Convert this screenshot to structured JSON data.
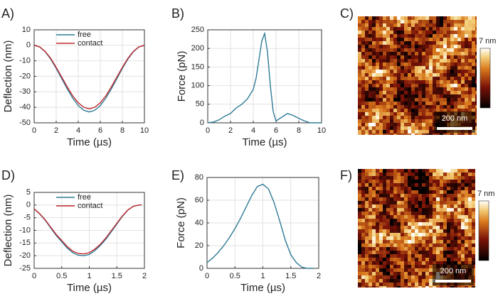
{
  "chart_data": [
    {
      "type": "line",
      "panel_label": "A)",
      "xlabel": "Time (µs)",
      "ylabel": "Deflection (nm)",
      "x": [
        0,
        0.5,
        1,
        1.5,
        2,
        2.5,
        3,
        3.5,
        4,
        4.5,
        5,
        5.5,
        6,
        6.5,
        7,
        7.5,
        8,
        8.5,
        9,
        9.5,
        10
      ],
      "series": [
        {
          "name": "free",
          "color": "#2e7a96",
          "values": [
            0,
            -1.1,
            -4.1,
            -8.9,
            -14.9,
            -21.5,
            -28.1,
            -34.1,
            -38.9,
            -41.9,
            -43,
            -41.9,
            -38.9,
            -34.1,
            -28.1,
            -21.5,
            -14.9,
            -8.9,
            -4.1,
            -1.1,
            0
          ]
        },
        {
          "name": "contact",
          "color": "#c0282e",
          "values": [
            0,
            -1.0,
            -3.9,
            -8.4,
            -14.2,
            -20.5,
            -26.8,
            -32.6,
            -37.1,
            -40.0,
            -41,
            -40.0,
            -37.1,
            -32.6,
            -26.8,
            -20.5,
            -14.2,
            -8.4,
            -3.9,
            -1.0,
            0
          ]
        }
      ],
      "xlim": [
        0,
        10
      ],
      "xticks": [
        0,
        2,
        4,
        6,
        8,
        10
      ],
      "ylim": [
        -50,
        10
      ],
      "yticks": [
        -50,
        -40,
        -30,
        -20,
        -10,
        0,
        10
      ],
      "grid": true,
      "legend": "upper center"
    },
    {
      "type": "line",
      "panel_label": "B)",
      "xlabel": "Time (µs)",
      "ylabel": "Force (pN)",
      "x": [
        0,
        0.5,
        1,
        1.5,
        2,
        2.5,
        3,
        3.5,
        4,
        4.25,
        4.5,
        4.75,
        5,
        5.25,
        5.5,
        5.75,
        6,
        6.5,
        7,
        7.5,
        8,
        8.5,
        9,
        9.5,
        10
      ],
      "series": [
        {
          "name": null,
          "color": "#2e7a96",
          "values": [
            0,
            2,
            8,
            18,
            25,
            40,
            50,
            65,
            90,
            120,
            170,
            220,
            240,
            190,
            100,
            30,
            5,
            15,
            25,
            20,
            12,
            5,
            0,
            0,
            0
          ]
        }
      ],
      "xlim": [
        0,
        10
      ],
      "xticks": [
        0,
        2,
        4,
        6,
        8,
        10
      ],
      "ylim": [
        0,
        250
      ],
      "yticks": [
        0,
        50,
        100,
        150,
        200,
        250
      ],
      "grid": true
    },
    {
      "type": "image",
      "panel_label": "C)",
      "colorbar_label": "7 nm",
      "scalebar_label": "200 nm"
    },
    {
      "type": "line",
      "panel_label": "D)",
      "xlabel": "Time (µs)",
      "ylabel": "Deflection (nm)",
      "x": [
        0,
        0.1,
        0.2,
        0.3,
        0.4,
        0.5,
        0.6,
        0.7,
        0.8,
        0.9,
        1.0,
        1.1,
        1.2,
        1.3,
        1.4,
        1.5,
        1.6,
        1.7,
        1.8,
        1.9,
        1.95
      ],
      "series": [
        {
          "name": "free",
          "color": "#2e7a96",
          "values": [
            -1.5,
            -3.5,
            -6,
            -9,
            -12,
            -14.5,
            -17,
            -18.8,
            -19.8,
            -20,
            -19.5,
            -18,
            -16,
            -13.5,
            -10.5,
            -7.5,
            -4.5,
            -2,
            -0.5,
            0,
            0
          ]
        },
        {
          "name": "contact",
          "color": "#c0282e",
          "values": [
            -1.5,
            -3.4,
            -5.8,
            -8.7,
            -11.6,
            -14,
            -16.4,
            -18.2,
            -19.1,
            -19.3,
            -18.8,
            -17.4,
            -15.5,
            -13,
            -10.1,
            -7.2,
            -4.3,
            -1.9,
            -0.5,
            0,
            0
          ]
        }
      ],
      "xlim": [
        0,
        2
      ],
      "xticks": [
        0,
        0.5,
        1,
        1.5,
        2
      ],
      "ylim": [
        -25,
        5
      ],
      "yticks": [
        -25,
        -20,
        -15,
        -10,
        -5,
        0,
        5
      ],
      "grid": true,
      "legend": "upper center"
    },
    {
      "type": "line",
      "panel_label": "E)",
      "xlabel": "Time (µs)",
      "ylabel": "Force (pN)",
      "x": [
        0,
        0.1,
        0.2,
        0.3,
        0.4,
        0.5,
        0.6,
        0.7,
        0.8,
        0.9,
        1.0,
        1.1,
        1.2,
        1.3,
        1.4,
        1.5,
        1.6,
        1.7,
        1.8,
        1.9
      ],
      "series": [
        {
          "name": null,
          "color": "#2e7a96",
          "values": [
            5,
            9,
            14,
            20,
            27,
            35,
            44,
            54,
            64,
            72,
            74,
            70,
            58,
            42,
            25,
            12,
            5,
            1,
            0,
            0
          ]
        }
      ],
      "xlim": [
        0,
        2
      ],
      "xticks": [
        0,
        0.5,
        1,
        1.5,
        2
      ],
      "ylim": [
        0,
        80
      ],
      "yticks": [
        0,
        20,
        40,
        60,
        80
      ],
      "grid": true
    },
    {
      "type": "image",
      "panel_label": "F)",
      "colorbar_label": "7 nm",
      "scalebar_label": "200 nm"
    }
  ]
}
